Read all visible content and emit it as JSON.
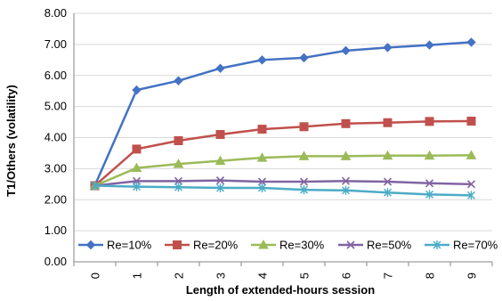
{
  "chart_data": {
    "type": "line",
    "title": "",
    "xlabel": "Length of extended-hours session",
    "ylabel": "T1/Others (volatility)",
    "categories": [
      "0",
      "1",
      "2",
      "3",
      "4",
      "5",
      "6",
      "7",
      "8",
      "9"
    ],
    "ylim": [
      0,
      8
    ],
    "y_ticks": [
      "0.00",
      "1.00",
      "2.00",
      "3.00",
      "4.00",
      "5.00",
      "6.00",
      "7.00",
      "8.00"
    ],
    "grid": "horizontal",
    "legend_position": "bottom-inside",
    "series": [
      {
        "name": "Re=10%",
        "color": "#4472C4",
        "marker": "diamond",
        "values": [
          2.45,
          5.53,
          5.83,
          6.23,
          6.5,
          6.57,
          6.8,
          6.9,
          6.98,
          7.07
        ]
      },
      {
        "name": "Re=20%",
        "color": "#C0504D",
        "marker": "square",
        "values": [
          2.45,
          3.63,
          3.9,
          4.1,
          4.27,
          4.35,
          4.45,
          4.48,
          4.52,
          4.53
        ]
      },
      {
        "name": "Re=30%",
        "color": "#9BBB59",
        "marker": "triangle",
        "values": [
          2.45,
          3.02,
          3.15,
          3.25,
          3.35,
          3.4,
          3.4,
          3.42,
          3.42,
          3.43
        ]
      },
      {
        "name": "Re=50%",
        "color": "#8064A2",
        "marker": "x",
        "values": [
          2.45,
          2.6,
          2.6,
          2.62,
          2.58,
          2.58,
          2.6,
          2.58,
          2.53,
          2.5
        ]
      },
      {
        "name": "Re=70%",
        "color": "#4BACC6",
        "marker": "star",
        "values": [
          2.45,
          2.42,
          2.4,
          2.38,
          2.38,
          2.32,
          2.3,
          2.23,
          2.17,
          2.14
        ]
      }
    ]
  }
}
